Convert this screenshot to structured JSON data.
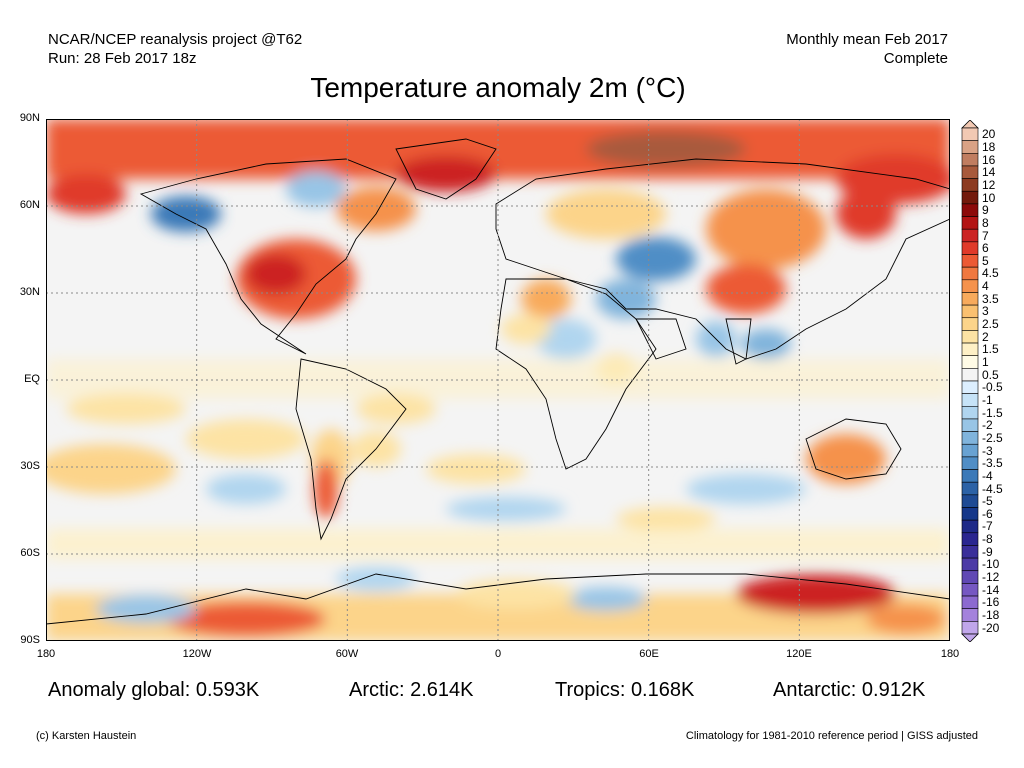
{
  "header": {
    "left_line1": "NCAR/NCEP reanalysis project @T62",
    "left_line2": "Run: 28 Feb 2017 18z",
    "right_line1": "Monthly mean Feb 2017",
    "right_line2": "Complete"
  },
  "title": "Temperature anomaly 2m (°C)",
  "axes": {
    "lat_labels": [
      "90N",
      "60N",
      "30N",
      "EQ",
      "30S",
      "60S",
      "90S"
    ],
    "lon_labels": [
      "180",
      "120W",
      "60W",
      "0",
      "60E",
      "120E",
      "180"
    ]
  },
  "stats": {
    "global": "Anomaly global: 0.593K",
    "arctic": "Arctic: 2.614K",
    "tropics": "Tropics: 0.168K",
    "antarctic": "Antarctic: 0.912K"
  },
  "footer": {
    "left": "(c) Karsten Haustein",
    "right": "Climatology for 1981-2010 reference period | GISS adjusted"
  },
  "colorbar": {
    "labels": [
      "20",
      "18",
      "16",
      "14",
      "12",
      "10",
      "9",
      "8",
      "7",
      "6",
      "5",
      "4.5",
      "4",
      "3.5",
      "3",
      "2.5",
      "2",
      "1.5",
      "1",
      "0.5",
      "-0.5",
      "-1",
      "-1.5",
      "-2",
      "-2.5",
      "-3",
      "-3.5",
      "-4",
      "-4.5",
      "-5",
      "-6",
      "-7",
      "-8",
      "-9",
      "-10",
      "-12",
      "-14",
      "-16",
      "-18",
      "-20"
    ],
    "colors": [
      "#f2c9b3",
      "#d9a285",
      "#c07d60",
      "#a85a3c",
      "#8c3a20",
      "#731a0c",
      "#8c0a0a",
      "#b31414",
      "#cc2424",
      "#e03a2a",
      "#ec5a34",
      "#f07840",
      "#f5924c",
      "#f8aa5c",
      "#fac070",
      "#fcd48a",
      "#fde3a4",
      "#fef0c6",
      "#fffbe6",
      "#f4f4f4",
      "#dcefff",
      "#c6e3f7",
      "#b0d5ef",
      "#98c5e6",
      "#80b4dc",
      "#68a2d2",
      "#508ec6",
      "#3b79b8",
      "#2c62a6",
      "#1f4b94",
      "#16388a",
      "#1e2a88",
      "#2a2690",
      "#3a2e9a",
      "#4c3aa6",
      "#6048b4",
      "#7658c2",
      "#8c6ad0",
      "#a482dc",
      "#c0a6ea"
    ]
  }
}
